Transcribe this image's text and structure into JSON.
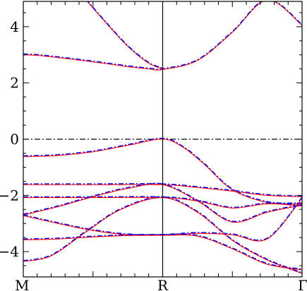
{
  "chart_data": {
    "type": "line",
    "title": "",
    "xlabel": "",
    "ylabel": "",
    "ylim": [
      -4.9,
      4.9
    ],
    "yticks": [
      -4,
      -2,
      0,
      2,
      4
    ],
    "ytick_labels": [
      "−4",
      "−2",
      "0",
      "2",
      "4"
    ],
    "x_kpoints": [
      {
        "label": "M",
        "x": 0
      },
      {
        "label": "R",
        "x": 1
      },
      {
        "label": "Γ",
        "x": 2
      }
    ],
    "fermi_level": 0,
    "colors": {
      "series_a": "#ff0000",
      "series_b": "#0000ff",
      "fermi": "#000000",
      "axes": "#000000"
    },
    "grid": false,
    "bands": [
      {
        "x": [
          0,
          0.1,
          0.25,
          0.5,
          0.75,
          0.9,
          1,
          1.25,
          1.5,
          1.75,
          2
        ],
        "y": [
          3.0,
          2.98,
          2.9,
          2.75,
          2.58,
          2.5,
          2.48,
          2.8,
          3.8,
          4.95,
          4.05
        ]
      },
      {
        "x": [
          0.45,
          0.6,
          0.75,
          0.9,
          1
        ],
        "y": [
          4.95,
          4.1,
          3.3,
          2.7,
          2.5
        ]
      },
      {
        "x": [
          0,
          0.25,
          0.5,
          0.75,
          1,
          1.15,
          1.3,
          1.5,
          1.75,
          2
        ],
        "y": [
          -0.62,
          -0.58,
          -0.45,
          -0.22,
          0.0,
          -0.3,
          -0.9,
          -1.8,
          -2.25,
          -2.3
        ]
      },
      {
        "x": [
          0,
          0.5,
          1,
          1.25,
          1.5,
          1.75,
          2
        ],
        "y": [
          -1.62,
          -1.62,
          -1.62,
          -1.72,
          -1.85,
          -2.0,
          -2.05
        ]
      },
      {
        "x": [
          0,
          0.5,
          1,
          1.25,
          1.5,
          1.75,
          2
        ],
        "y": [
          -2.08,
          -2.08,
          -2.08,
          -2.2,
          -2.45,
          -2.3,
          -2.38
        ]
      },
      {
        "x": [
          0,
          0.25,
          0.5,
          0.75,
          1,
          1.25,
          1.5,
          1.75,
          2
        ],
        "y": [
          -2.7,
          -2.4,
          -2.05,
          -1.75,
          -1.62,
          -2.2,
          -2.95,
          -2.6,
          -2.35
        ]
      },
      {
        "x": [
          0,
          0.25,
          0.5,
          0.75,
          1,
          1.25,
          1.5,
          1.75,
          2
        ],
        "y": [
          -2.72,
          -3.0,
          -3.25,
          -3.4,
          -3.42,
          -3.35,
          -3.4,
          -3.55,
          -2.1
        ]
      },
      {
        "x": [
          0,
          0.25,
          0.5,
          0.75,
          1,
          1.25,
          1.5,
          1.75,
          2
        ],
        "y": [
          -3.58,
          -3.55,
          -3.48,
          -3.43,
          -3.42,
          -3.45,
          -3.9,
          -4.45,
          -4.65
        ]
      },
      {
        "x": [
          0,
          0.2,
          0.45,
          0.7,
          1,
          1.25,
          1.5,
          1.75,
          2
        ],
        "y": [
          -4.35,
          -4.15,
          -3.3,
          -2.5,
          -2.08,
          -2.6,
          -3.6,
          -4.3,
          -4.78
        ]
      }
    ]
  }
}
